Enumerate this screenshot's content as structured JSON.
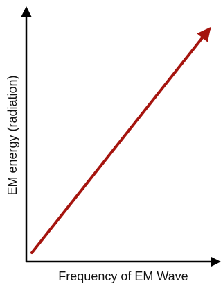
{
  "chart_data": {
    "type": "line",
    "title": "",
    "xlabel": "Frequency of EM Wave",
    "ylabel": "EM energy (radiation)",
    "grid": false,
    "legend": "none",
    "series": [
      {
        "x": [
          0,
          1
        ],
        "y": [
          0,
          1
        ],
        "color": "#a5140e"
      }
    ],
    "axis_color": "#000000"
  }
}
